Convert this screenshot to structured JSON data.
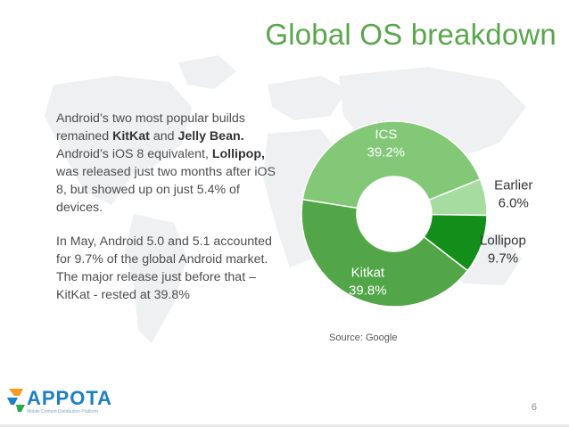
{
  "slide": {
    "title": "Global OS breakdown",
    "page_number": "6",
    "source": "Source: Google",
    "logo_text": "APPOTA",
    "logo_tagline": "Mobile Content Distribution Platform"
  },
  "paragraph1": {
    "t1": "Android’s two most popular builds remained ",
    "kitkat": "KitKat",
    "t2": " and ",
    "jellybean": "Jelly Bean.",
    "t3": " Android’s iOS 8 equivalent, ",
    "lollipop": "Lollipop,",
    "t4": " was released just two months after iOS 8, but showed up on just 5.4% of devices."
  },
  "paragraph2": {
    "text": "In May, Android 5.0 and 5.1 accounted for 9.7% of the global Android market. The major release just before that – KitKat - rested at 39.8%"
  },
  "chart_data": {
    "type": "pie",
    "donut": true,
    "slices": [
      {
        "label": "ICS",
        "value": 39.2,
        "value_label": "39.2%",
        "color": "#82c876"
      },
      {
        "label": "Earlier",
        "value": 6.0,
        "value_label": "6.0%",
        "color": "#a6dca0"
      },
      {
        "label": "Lollipop",
        "value": 9.7,
        "value_label": "9.7%",
        "color": "#138e1a"
      },
      {
        "label": "Kitkat",
        "value": 39.8,
        "value_label": "39.8%",
        "color": "#52a647"
      }
    ]
  },
  "colors": {
    "title": "#5aa64c",
    "text": "#4d4d4d",
    "map": "#eef0f2",
    "label_light": "#ffffff",
    "label_dark": "#333333"
  }
}
